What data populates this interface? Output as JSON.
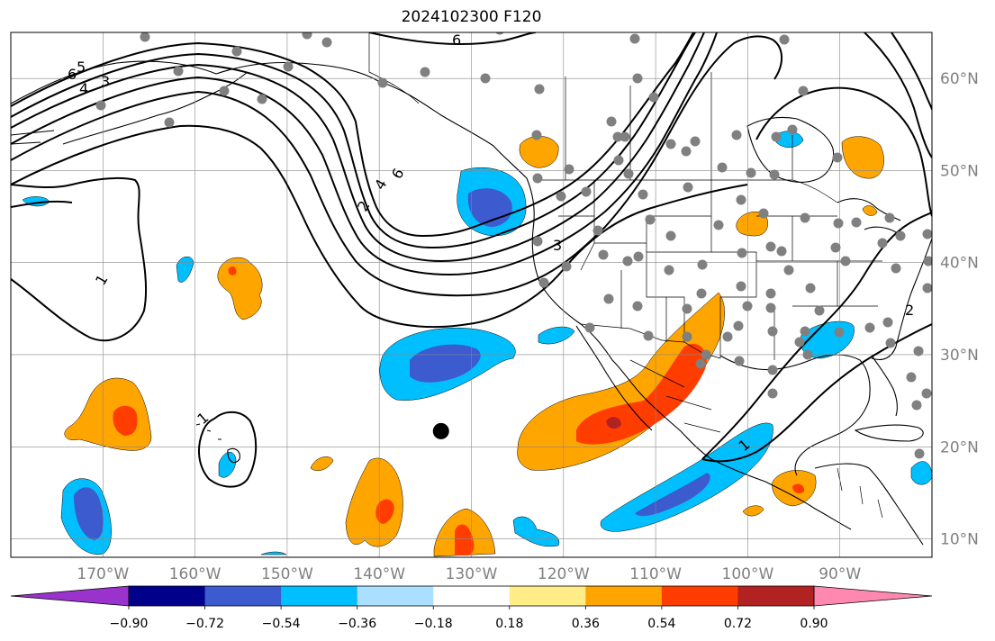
{
  "title": "2024102300 F120",
  "map": {
    "projection": "plate-carree",
    "lon_range": [
      -180,
      -80
    ],
    "lat_range": [
      8,
      65
    ],
    "graticule": true,
    "lon_ticks": [
      "170°W",
      "160°W",
      "150°W",
      "140°W",
      "130°W",
      "120°W",
      "110°W",
      "100°W",
      "90°W"
    ],
    "lat_ticks": [
      "60°N",
      "50°N",
      "40°N",
      "30°N",
      "20°N",
      "10°N"
    ],
    "tick_color": "#808080"
  },
  "contour_labels": [
    "6",
    "5",
    "4",
    "3",
    "6",
    "4",
    "2",
    "1",
    "1",
    "3",
    "2",
    "1",
    "6"
  ],
  "marker": {
    "name": "storm-center",
    "lon": -133.3,
    "lat": 21.7,
    "color": "#000000"
  },
  "colorbar": {
    "colors": [
      "#9933cc",
      "#00008b",
      "#3b5bcf",
      "#00bfff",
      "#aadfff",
      "#ffffff",
      "#ffee88",
      "#ffa500",
      "#ff3d00",
      "#b22222",
      "#ff88b0"
    ],
    "tick_labels": [
      "−0.90",
      "−0.72",
      "−0.54",
      "−0.36",
      "−0.18",
      "0.18",
      "0.36",
      "0.54",
      "0.72",
      "0.90"
    ],
    "extend": "both"
  },
  "colors": {
    "station": "#808080",
    "blue_light": "#00bfff",
    "blue_dark": "#3b5bcf",
    "orange": "#ffa500",
    "red": "#ff3d00",
    "darkred": "#b22222",
    "yellow": "#ffee88"
  }
}
